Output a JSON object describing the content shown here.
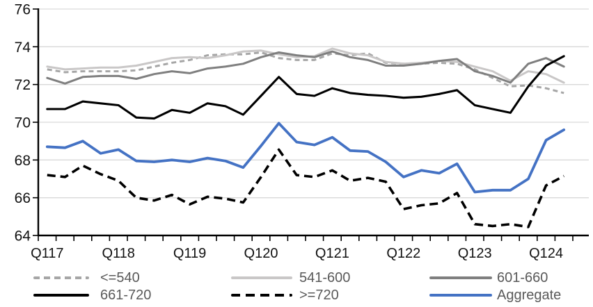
{
  "chart_data": {
    "type": "line",
    "title": "",
    "ylim": [
      64,
      76
    ],
    "yticks": [
      76,
      74,
      72,
      70,
      68,
      66,
      64
    ],
    "grid": true,
    "legend_position": "bottom",
    "x": [
      "Q117",
      "Q217",
      "Q317",
      "Q417",
      "Q118",
      "Q218",
      "Q318",
      "Q418",
      "Q119",
      "Q219",
      "Q319",
      "Q419",
      "Q120",
      "Q220",
      "Q320",
      "Q420",
      "Q121",
      "Q221",
      "Q321",
      "Q421",
      "Q122",
      "Q222",
      "Q322",
      "Q422",
      "Q123",
      "Q223",
      "Q323",
      "Q423",
      "Q124",
      "Q224"
    ],
    "x_tick_labels": [
      "Q117",
      "Q118",
      "Q119",
      "Q120",
      "Q121",
      "Q122",
      "Q123",
      "Q124"
    ],
    "x_label_indices": [
      0,
      4,
      8,
      12,
      16,
      20,
      24,
      28
    ],
    "series": [
      {
        "name": "<=540",
        "color": "#a6a6a6",
        "style": "dashed",
        "values": [
          72.8,
          72.65,
          72.7,
          72.7,
          72.7,
          72.75,
          72.95,
          73.15,
          73.3,
          73.55,
          73.6,
          73.6,
          73.7,
          73.4,
          73.3,
          73.3,
          73.65,
          73.55,
          73.65,
          73.15,
          73.1,
          73.1,
          73.15,
          73.1,
          72.8,
          72.35,
          71.9,
          71.95,
          71.8,
          71.55
        ]
      },
      {
        "name": "541-600",
        "color": "#c9c7c7",
        "style": "solid",
        "values": [
          72.95,
          72.8,
          72.85,
          72.9,
          72.9,
          73.0,
          73.2,
          73.4,
          73.45,
          73.4,
          73.55,
          73.75,
          73.8,
          73.6,
          73.45,
          73.5,
          73.9,
          73.65,
          73.55,
          73.2,
          73.1,
          73.15,
          73.25,
          73.2,
          72.95,
          72.7,
          72.2,
          72.7,
          72.55,
          72.1
        ]
      },
      {
        "name": "601-660",
        "color": "#7f7f7f",
        "style": "solid",
        "values": [
          72.35,
          72.05,
          72.4,
          72.45,
          72.45,
          72.3,
          72.55,
          72.7,
          72.6,
          72.85,
          72.95,
          73.1,
          73.45,
          73.7,
          73.55,
          73.45,
          73.75,
          73.45,
          73.3,
          73.0,
          73.0,
          73.1,
          73.25,
          73.35,
          72.7,
          72.45,
          72.1,
          73.1,
          73.4,
          72.95
        ]
      },
      {
        "name": "661-720",
        "color": "#000000",
        "style": "solid",
        "values": [
          70.7,
          70.7,
          71.1,
          71.0,
          70.9,
          70.25,
          70.2,
          70.65,
          70.5,
          71.0,
          70.85,
          70.4,
          71.4,
          72.4,
          71.5,
          71.4,
          71.8,
          71.55,
          71.45,
          71.4,
          71.3,
          71.35,
          71.5,
          71.7,
          70.9,
          70.7,
          70.5,
          71.9,
          73.0,
          73.5
        ]
      },
      {
        "name": ">=720",
        "color": "#000000",
        "style": "dashed",
        "values": [
          67.2,
          67.1,
          67.7,
          67.25,
          66.9,
          66.0,
          65.85,
          66.15,
          65.65,
          66.05,
          65.95,
          65.75,
          67.1,
          68.55,
          67.2,
          67.1,
          67.45,
          66.9,
          67.05,
          66.85,
          65.4,
          65.6,
          65.7,
          66.25,
          64.6,
          64.5,
          64.6,
          64.45,
          66.65,
          67.15
        ]
      },
      {
        "name": "Aggregate",
        "color": "#4472c4",
        "style": "solid",
        "values": [
          68.7,
          68.65,
          69.0,
          68.35,
          68.55,
          67.95,
          67.9,
          68.0,
          67.9,
          68.1,
          67.95,
          67.6,
          68.75,
          69.95,
          68.95,
          68.8,
          69.2,
          68.5,
          68.45,
          67.9,
          67.1,
          67.45,
          67.3,
          67.8,
          66.3,
          66.4,
          66.4,
          67.0,
          69.05,
          69.6
        ]
      }
    ]
  },
  "legend": {
    "row1": [
      "<=540",
      "541-600",
      "601-660"
    ],
    "row2": [
      "661-720",
      ">=720",
      "Aggregate"
    ]
  }
}
